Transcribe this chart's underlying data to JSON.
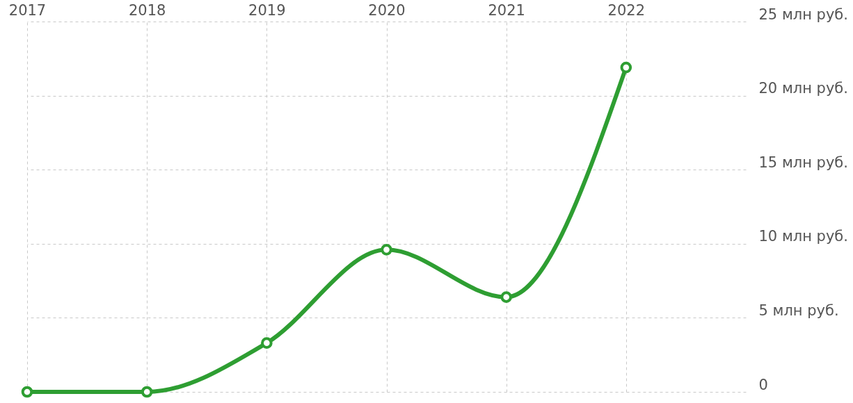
{
  "chart_data": {
    "type": "line",
    "x": [
      2017,
      2018,
      2019,
      2020,
      2021,
      2022
    ],
    "series": [
      {
        "color": "#2e9e32",
        "values": [
          0,
          0,
          3.3,
          9.6,
          6.4,
          21.9
        ]
      }
    ],
    "xlim": [
      2017,
      2023
    ],
    "xticks": [
      2017,
      2018,
      2019,
      2020,
      2021,
      2022
    ],
    "ylim": [
      0,
      25
    ],
    "yticks": [
      0,
      {
        "value": 5,
        "label": "5 млн руб."
      },
      {
        "value": 10,
        "label": "10 млн руб."
      },
      {
        "value": 15,
        "label": "15 млн руб."
      },
      {
        "value": 20,
        "label": "20 млн руб."
      },
      {
        "value": 25,
        "label": "25 млн руб."
      }
    ],
    "grid": true,
    "marker": "circle",
    "line_style": "solid",
    "legend": false
  }
}
